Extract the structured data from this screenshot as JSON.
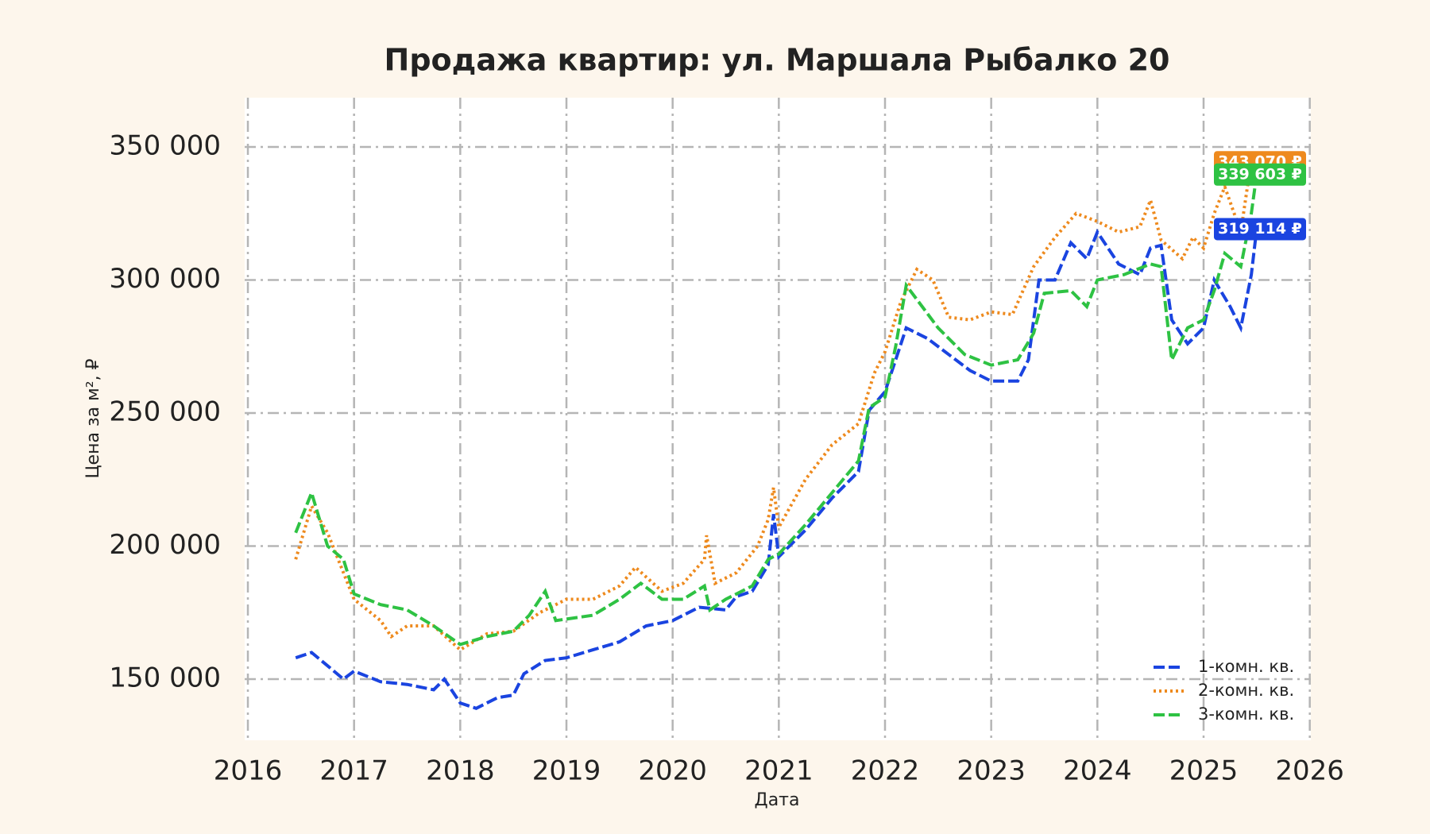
{
  "chart_data": {
    "type": "line",
    "title": "Продажа квартир: ул. Маршала Рыбалко 20",
    "x_label": "Дата",
    "y_label": "Цена за м², ₽",
    "xlim": [
      2015.97,
      2026.01
    ],
    "xticks": [
      2016,
      2017,
      2018,
      2019,
      2020,
      2021,
      2022,
      2023,
      2024,
      2025,
      2026
    ],
    "ylim": [
      127000,
      368500
    ],
    "yticks": [
      {
        "value": 150000,
        "label": "150 000"
      },
      {
        "value": 200000,
        "label": "200 000"
      },
      {
        "value": 250000,
        "label": "250 000"
      },
      {
        "value": 300000,
        "label": "300 000"
      },
      {
        "value": 350000,
        "label": "350 000"
      }
    ],
    "grid": true,
    "legend": "lower right",
    "series": [
      {
        "name": "1-комн. кв.",
        "color": "#1a44e0",
        "dash": "dashed",
        "x": [
          2016.45,
          2016.6,
          2016.75,
          2016.9,
          2017.0,
          2017.25,
          2017.5,
          2017.75,
          2017.85,
          2018.0,
          2018.15,
          2018.35,
          2018.5,
          2018.6,
          2018.8,
          2019.0,
          2019.25,
          2019.5,
          2019.75,
          2020.0,
          2020.25,
          2020.5,
          2020.6,
          2020.75,
          2020.9,
          2020.95,
          2021.0,
          2021.25,
          2021.5,
          2021.75,
          2021.85,
          2022.0,
          2022.1,
          2022.2,
          2022.4,
          2022.6,
          2022.8,
          2023.0,
          2023.25,
          2023.35,
          2023.45,
          2023.6,
          2023.75,
          2023.9,
          2024.0,
          2024.2,
          2024.4,
          2024.5,
          2024.6,
          2024.7,
          2024.85,
          2025.0,
          2025.1,
          2025.25,
          2025.35,
          2025.45,
          2025.5
        ],
        "values": [
          158000,
          160000,
          155000,
          150000,
          153000,
          149000,
          148000,
          146000,
          150000,
          141000,
          139000,
          143000,
          144000,
          152000,
          157000,
          158000,
          161000,
          164000,
          170000,
          172000,
          177000,
          176000,
          181000,
          183000,
          193000,
          212000,
          196000,
          206000,
          218000,
          228000,
          251000,
          258000,
          270000,
          282000,
          278000,
          272000,
          266000,
          262000,
          262000,
          270000,
          300000,
          300000,
          314000,
          308000,
          318000,
          306000,
          302000,
          312000,
          313000,
          285000,
          276000,
          282000,
          300000,
          290000,
          282000,
          302000,
          319114
        ],
        "end_label": {
          "value": 319114,
          "label": "319 114 ₽"
        }
      },
      {
        "name": "2-комн. кв.",
        "color": "#ee8a1e",
        "dash": "dotted",
        "x": [
          2016.45,
          2016.6,
          2016.75,
          2016.85,
          2017.0,
          2017.25,
          2017.35,
          2017.5,
          2017.75,
          2018.0,
          2018.25,
          2018.5,
          2018.75,
          2019.0,
          2019.25,
          2019.5,
          2019.65,
          2019.9,
          2020.1,
          2020.3,
          2020.32,
          2020.4,
          2020.6,
          2020.8,
          2020.9,
          2020.95,
          2021.0,
          2021.25,
          2021.5,
          2021.75,
          2021.9,
          2022.0,
          2022.15,
          2022.3,
          2022.45,
          2022.6,
          2022.8,
          2023.0,
          2023.2,
          2023.4,
          2023.6,
          2023.8,
          2024.0,
          2024.2,
          2024.4,
          2024.5,
          2024.6,
          2024.8,
          2024.9,
          2025.0,
          2025.1,
          2025.2,
          2025.35,
          2025.45,
          2025.5
        ],
        "values": [
          195000,
          215000,
          205000,
          195000,
          180000,
          172000,
          166000,
          170000,
          170000,
          161000,
          167000,
          168000,
          175000,
          180000,
          180000,
          185000,
          192000,
          183000,
          186000,
          195000,
          204000,
          186000,
          190000,
          200000,
          210000,
          222000,
          207000,
          225000,
          238000,
          246000,
          265000,
          273000,
          292000,
          304000,
          300000,
          286000,
          285000,
          288000,
          287000,
          305000,
          316000,
          325000,
          322000,
          318000,
          320000,
          330000,
          315000,
          308000,
          316000,
          312000,
          325000,
          335000,
          318000,
          345000,
          343070
        ],
        "end_label": {
          "value": 343070,
          "label": "343 070 ₽"
        }
      },
      {
        "name": "3-комн. кв.",
        "color": "#2ec243",
        "dash": "dashed",
        "x": [
          2016.45,
          2016.6,
          2016.75,
          2016.9,
          2017.0,
          2017.25,
          2017.5,
          2017.75,
          2018.0,
          2018.25,
          2018.5,
          2018.65,
          2018.8,
          2018.9,
          2019.25,
          2019.5,
          2019.7,
          2019.9,
          2020.1,
          2020.3,
          2020.35,
          2020.5,
          2020.75,
          2020.9,
          2021.0,
          2021.25,
          2021.5,
          2021.75,
          2021.85,
          2022.0,
          2022.1,
          2022.2,
          2022.35,
          2022.5,
          2022.75,
          2023.0,
          2023.25,
          2023.4,
          2023.5,
          2023.75,
          2023.9,
          2024.0,
          2024.25,
          2024.5,
          2024.6,
          2024.7,
          2024.85,
          2025.0,
          2025.1,
          2025.2,
          2025.35,
          2025.45,
          2025.5
        ],
        "values": [
          205000,
          220000,
          200000,
          195000,
          182000,
          178000,
          176000,
          170000,
          163000,
          166000,
          168000,
          174000,
          183000,
          172000,
          174000,
          180000,
          186000,
          180000,
          180000,
          185000,
          176000,
          180000,
          185000,
          195000,
          197000,
          208000,
          220000,
          232000,
          252000,
          256000,
          275000,
          298000,
          290000,
          282000,
          272000,
          268000,
          270000,
          280000,
          295000,
          296000,
          290000,
          300000,
          302000,
          306000,
          305000,
          270000,
          282000,
          285000,
          296000,
          310000,
          305000,
          325000,
          339603
        ],
        "end_label": {
          "value": 339603,
          "label": "339 603 ₽"
        }
      }
    ]
  }
}
